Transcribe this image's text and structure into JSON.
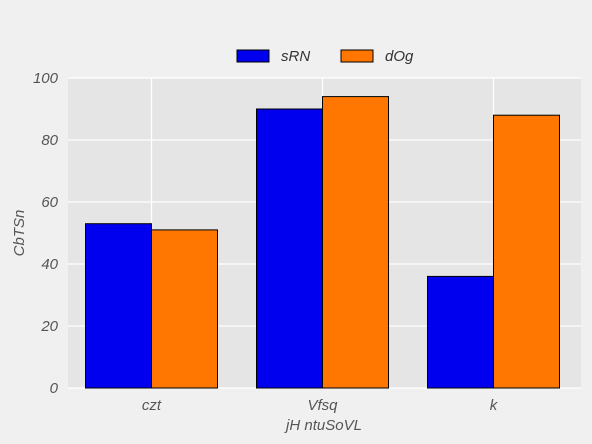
{
  "chart_data": {
    "type": "bar",
    "categories": [
      "czt",
      "Vfsq",
      "k"
    ],
    "series": [
      {
        "name": "sRN",
        "values": [
          53,
          90,
          36
        ],
        "color": "#0000ee"
      },
      {
        "name": "dOg",
        "values": [
          51,
          94,
          88
        ],
        "color": "#ff7700"
      }
    ],
    "xlabel": "jH ntuSoVL",
    "ylabel": "CbTSn",
    "ylim": [
      0,
      100
    ],
    "yticks": [
      0,
      20,
      40,
      60,
      80,
      100
    ],
    "grid": true,
    "legend_position": "top-center",
    "plot_background": "#e5e5e5",
    "grid_color": "#ffffff"
  }
}
